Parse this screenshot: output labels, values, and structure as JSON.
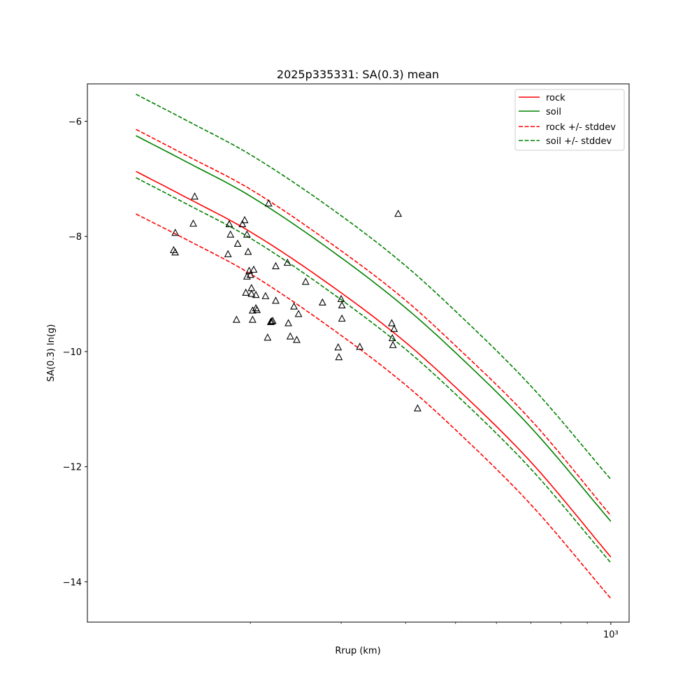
{
  "chart_data": {
    "type": "line",
    "title": "2025p335331: SA(0.3) mean",
    "xlabel": "Rrup (km)",
    "ylabel": "SA(0.3) ln(g)",
    "xscale": "log",
    "xlim": [
      96.6,
      1085
    ],
    "ylim": [
      -14.7,
      -5.35
    ],
    "y_ticks": [
      -6,
      -8,
      -10,
      -12,
      -14
    ],
    "y_tick_labels": [
      "−6",
      "−8",
      "−10",
      "−12",
      "−14"
    ],
    "x_major_ticks": [
      1000
    ],
    "x_major_tick_labels": [
      "10³"
    ],
    "x_minor_ticks": [
      200,
      300,
      400,
      500,
      600,
      700,
      800,
      900
    ],
    "grid": false,
    "legend_position": "top-right",
    "legend": [
      "rock",
      "soil",
      "rock +/- stddev",
      "soil +/- stddev"
    ],
    "series": [
      {
        "name": "rock",
        "color": "#ff0000",
        "style": "solid",
        "x": [
          120,
          150,
          200,
          300,
          400,
          500,
          700,
          1000
        ],
        "y": [
          -6.87,
          -7.32,
          -7.92,
          -8.98,
          -9.84,
          -10.62,
          -11.92,
          -13.57
        ]
      },
      {
        "name": "soil",
        "color": "#008000",
        "style": "solid",
        "x": [
          120,
          150,
          200,
          300,
          400,
          500,
          700,
          1000
        ],
        "y": [
          -6.25,
          -6.7,
          -7.3,
          -8.37,
          -9.24,
          -10.02,
          -11.32,
          -12.95
        ]
      },
      {
        "name": "rock +/- stddev",
        "color": "#ff0000",
        "style": "dashed",
        "x": [
          120,
          150,
          200,
          300,
          400,
          500,
          700,
          1000
        ],
        "y": [
          -6.14,
          -6.59,
          -7.18,
          -8.25,
          -9.11,
          -9.9,
          -11.19,
          -12.85
        ]
      },
      {
        "name": "",
        "color": "#ff0000",
        "style": "dashed",
        "x": [
          120,
          150,
          200,
          300,
          400,
          500,
          700,
          1000
        ],
        "y": [
          -7.61,
          -8.05,
          -8.65,
          -9.72,
          -10.58,
          -11.36,
          -12.66,
          -14.29
        ]
      },
      {
        "name": "soil +/- stddev",
        "color": "#008000",
        "style": "dashed",
        "x": [
          120,
          150,
          200,
          300,
          400,
          500,
          700,
          1000
        ],
        "y": [
          -5.53,
          -5.98,
          -6.58,
          -7.64,
          -8.51,
          -9.3,
          -10.6,
          -12.22
        ]
      },
      {
        "name": "",
        "color": "#008000",
        "style": "dashed",
        "x": [
          120,
          150,
          200,
          300,
          400,
          500,
          700,
          1000
        ],
        "y": [
          -6.98,
          -7.43,
          -8.03,
          -9.1,
          -9.96,
          -10.74,
          -12.04,
          -13.67
        ]
      }
    ],
    "observations": {
      "marker": "triangle",
      "color": "#000000",
      "x": [
        142,
        143,
        143,
        155,
        156,
        181,
        182,
        183,
        188,
        189,
        193,
        195,
        196,
        197,
        197,
        198,
        199,
        200,
        201,
        201,
        202,
        202,
        203,
        205,
        205,
        206,
        214,
        216,
        217,
        219,
        220,
        221,
        224,
        224,
        236,
        237,
        239,
        243,
        246,
        248,
        256,
        276,
        296,
        297,
        300,
        301,
        301,
        326,
        376,
        377,
        378,
        380,
        387,
        422
      ],
      "y": [
        -8.24,
        -8.28,
        -7.94,
        -7.78,
        -7.31,
        -8.31,
        -7.79,
        -7.97,
        -9.45,
        -8.13,
        -7.79,
        -7.72,
        -8.98,
        -7.97,
        -8.7,
        -8.27,
        -8.6,
        -8.67,
        -8.9,
        -9.0,
        -9.29,
        -9.45,
        -8.58,
        -9.02,
        -9.25,
        -9.28,
        -9.04,
        -9.76,
        -7.43,
        -9.49,
        -9.48,
        -9.47,
        -8.52,
        -9.12,
        -8.46,
        -9.51,
        -9.74,
        -9.22,
        -9.8,
        -9.35,
        -8.79,
        -9.15,
        -9.93,
        -10.1,
        -9.09,
        -9.2,
        -9.43,
        -9.92,
        -9.51,
        -9.77,
        -9.89,
        -9.61,
        -7.61,
        -10.99
      ]
    }
  }
}
